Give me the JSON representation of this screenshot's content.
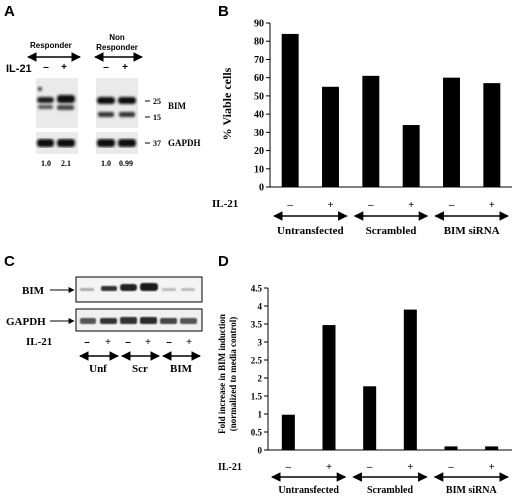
{
  "panels": {
    "A": {
      "letter": "A",
      "group_left": "Responder",
      "group_right_l1": "Non",
      "group_right_l2": "Responder",
      "treatment": "IL-21",
      "minus": "–",
      "plus": "+",
      "marker_25": "25",
      "marker_15": "15",
      "marker_37": "37",
      "band_bim": "BIM",
      "band_gapdh": "GAPDH",
      "quant": [
        "1.0",
        "2.1",
        "1.0",
        "0.99"
      ]
    },
    "B": {
      "letter": "B",
      "treatment": "IL-21",
      "minus": "–",
      "plus": "+",
      "groups": [
        "Untransfected",
        "Scrambled",
        "BIM siRNA"
      ]
    },
    "C": {
      "letter": "C",
      "band_bim": "BIM",
      "band_gapdh": "GAPDH",
      "treatment": "IL-21",
      "minus": "–",
      "plus": "+",
      "groups": [
        "Unf",
        "Scr",
        "BIM"
      ]
    },
    "D": {
      "letter": "D",
      "treatment": "IL-21",
      "minus": "–",
      "plus": "+",
      "groups": [
        "Untransfected",
        "Scrambled",
        "BIM siRNA"
      ]
    }
  },
  "chart_data": [
    {
      "panel": "B",
      "type": "bar",
      "categories": [
        "–",
        "+",
        "–",
        "+",
        "–",
        "+"
      ],
      "groups": [
        "Untransfected",
        "Scrambled",
        "BIM siRNA"
      ],
      "values": [
        84,
        55,
        61,
        34,
        60,
        57
      ],
      "title": "",
      "xlabel": "IL-21",
      "ylabel": "% Viable cells",
      "ylim": [
        0,
        90
      ],
      "yticks": [
        0,
        10,
        20,
        30,
        40,
        50,
        60,
        70,
        80,
        90
      ],
      "ytick_labels": [
        "0",
        "10",
        "20",
        "30",
        "40",
        "50",
        "60",
        "70",
        "80",
        "90"
      ],
      "grid": false
    },
    {
      "panel": "D",
      "type": "bar",
      "categories": [
        "–",
        "+",
        "–",
        "+",
        "–",
        "+"
      ],
      "groups": [
        "Untransfected",
        "Scrambled",
        "BIM siRNA"
      ],
      "values": [
        0.98,
        3.47,
        1.77,
        3.9,
        0.1,
        0.1
      ],
      "title": "",
      "xlabel": "IL-21",
      "ylabel_l1": "Fold increase in BIM induction",
      "ylabel_l2": "(normalized to media control)",
      "ylim": [
        0,
        4.5
      ],
      "yticks": [
        0,
        0.5,
        1,
        1.5,
        2,
        2.5,
        3,
        3.5,
        4,
        4.5
      ],
      "ytick_labels": [
        "0",
        "0.5",
        "1",
        "1.5",
        "2",
        "2.5",
        "3",
        "3.5",
        "4",
        "4.5"
      ],
      "grid": false
    }
  ]
}
